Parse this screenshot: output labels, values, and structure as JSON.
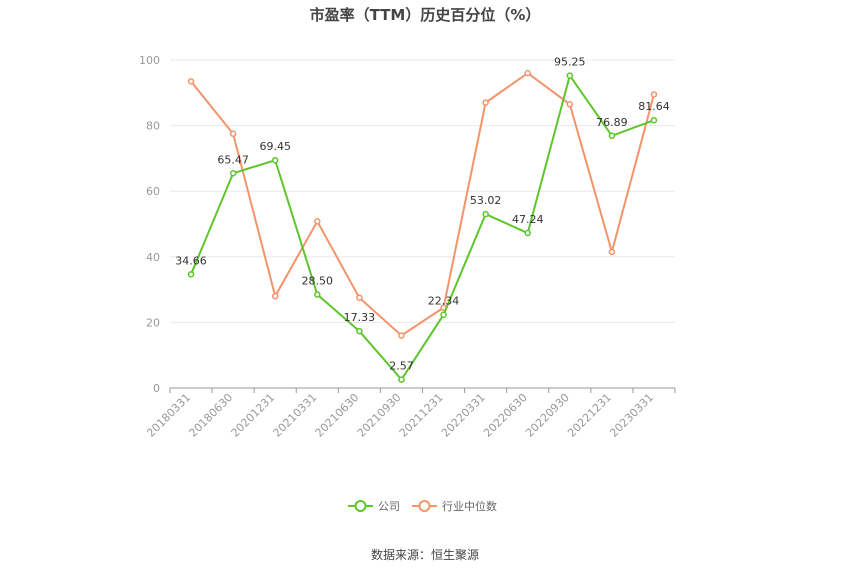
{
  "chart_data": {
    "type": "line",
    "title": "市盈率（TTM）历史百分位（%）",
    "categories": [
      "20180331",
      "20180630",
      "20201231",
      "20210331",
      "20210630",
      "20210930",
      "20211231",
      "20220331",
      "20220630",
      "20220930",
      "20221231",
      "20230331"
    ],
    "ylim": [
      0,
      100
    ],
    "yticks": [
      0,
      20,
      40,
      60,
      80,
      100
    ],
    "grid": true,
    "legend_position": "bottom-center",
    "series": [
      {
        "name": "公司",
        "color": "#5ec62c",
        "values": [
          34.66,
          65.47,
          69.45,
          28.5,
          17.33,
          2.57,
          22.34,
          53.02,
          47.24,
          95.25,
          76.89,
          81.64
        ],
        "labels": [
          "34.66",
          "65.47",
          "69.45",
          "28.50",
          "17.33",
          "2.57",
          "22.34",
          "53.02",
          "47.24",
          "95.25",
          "76.89",
          "81.64"
        ]
      },
      {
        "name": "行业中位数",
        "color": "#f5936a",
        "values": [
          93.5,
          77.5,
          28.0,
          50.8,
          27.5,
          16.0,
          24.5,
          87.0,
          96.0,
          86.5,
          41.5,
          89.5
        ]
      }
    ]
  },
  "source": "数据来源：恒生聚源"
}
